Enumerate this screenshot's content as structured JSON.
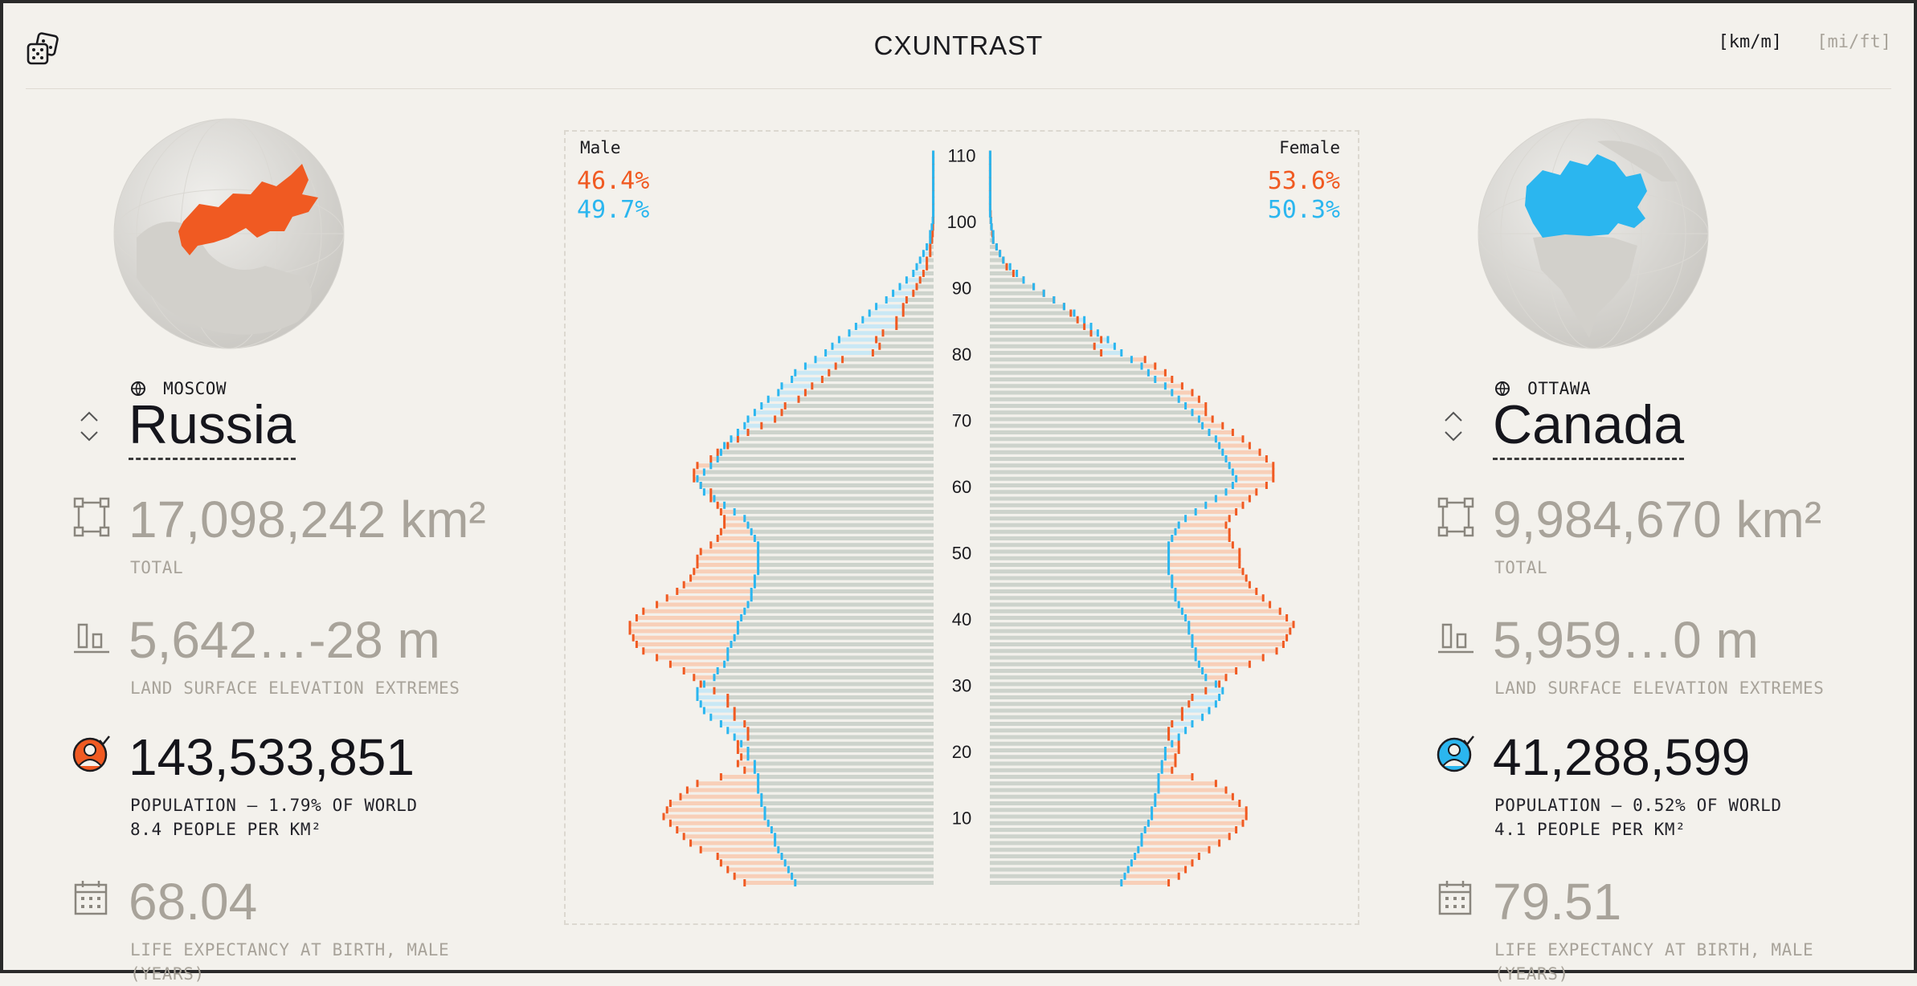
{
  "header": {
    "logo": "CXUNTRAST",
    "units": [
      {
        "label": "[km/m]",
        "active": true
      },
      {
        "label": "[mi/ft]",
        "active": false
      }
    ],
    "dice_icon": "dice-icon"
  },
  "colors": {
    "left_accent": "#f05a22",
    "right_accent": "#2bb6ef",
    "muted_text": "#a8a39a",
    "bar_fill": "#cdd3cc",
    "left_fill": "#f8cfb8",
    "right_fill": "#c9e8f5"
  },
  "left": {
    "capital": "MOSCOW",
    "name": "Russia",
    "area": {
      "value": "17,098,242 km²",
      "label": "TOTAL"
    },
    "elevation": {
      "value": "5,642…-28 m",
      "label": "LAND SURFACE ELEVATION EXTREMES"
    },
    "population": {
      "value": "143,533,851",
      "label_line1": "POPULATION – 1.79% OF WORLD",
      "label_line2": "8.4 PEOPLE PER KM²"
    },
    "life": {
      "value": "68.04",
      "label_line1": "LIFE EXPECTANCY AT BIRTH, MALE",
      "label_line2": "(YEARS)"
    }
  },
  "right": {
    "capital": "OTTAWA",
    "name": "Canada",
    "area": {
      "value": "9,984,670 km²",
      "label": "TOTAL"
    },
    "elevation": {
      "value": "5,959…0 m",
      "label": "LAND SURFACE ELEVATION EXTREMES"
    },
    "population": {
      "value": "41,288,599",
      "label_line1": "POPULATION – 0.52% OF WORLD",
      "label_line2": "4.1 PEOPLE PER KM²"
    },
    "life": {
      "value": "79.51",
      "label_line1": "LIFE EXPECTANCY AT BIRTH, MALE",
      "label_line2": "(YEARS)"
    }
  },
  "pyramid": {
    "male_label": "Male",
    "female_label": "Female",
    "male_left_pct": "46.4%",
    "male_right_pct": "49.7%",
    "female_left_pct": "53.6%",
    "female_right_pct": "50.3%"
  },
  "chart_data": {
    "type": "bar",
    "ages": [
      0,
      1,
      2,
      3,
      4,
      5,
      6,
      7,
      8,
      9,
      10,
      11,
      12,
      13,
      14,
      15,
      16,
      17,
      18,
      19,
      20,
      21,
      22,
      23,
      24,
      25,
      26,
      27,
      28,
      29,
      30,
      31,
      32,
      33,
      34,
      35,
      36,
      37,
      38,
      39,
      40,
      41,
      42,
      43,
      44,
      45,
      46,
      47,
      48,
      49,
      50,
      51,
      52,
      53,
      54,
      55,
      56,
      57,
      58,
      59,
      60,
      61,
      62,
      63,
      64,
      65,
      66,
      67,
      68,
      69,
      70,
      71,
      72,
      73,
      74,
      75,
      76,
      77,
      78,
      79,
      80,
      81,
      82,
      83,
      84,
      85,
      86,
      87,
      88,
      89,
      90,
      91,
      92,
      93,
      94,
      95,
      96,
      97,
      98,
      99,
      100,
      101,
      102,
      103,
      104,
      105,
      106,
      107,
      108,
      109,
      110
    ],
    "y_ticks": [
      10,
      20,
      30,
      40,
      50,
      60,
      70,
      80,
      90,
      100,
      110
    ],
    "series": [
      {
        "name": "Male",
        "side": "left",
        "country": "Russia",
        "values": [
          0.56,
          0.59,
          0.61,
          0.63,
          0.64,
          0.69,
          0.72,
          0.74,
          0.76,
          0.78,
          0.8,
          0.79,
          0.78,
          0.75,
          0.73,
          0.7,
          0.63,
          0.56,
          0.58,
          0.57,
          0.58,
          0.58,
          0.55,
          0.55,
          0.56,
          0.59,
          0.59,
          0.61,
          0.61,
          0.65,
          0.69,
          0.71,
          0.74,
          0.78,
          0.82,
          0.86,
          0.88,
          0.89,
          0.9,
          0.9,
          0.88,
          0.86,
          0.82,
          0.79,
          0.76,
          0.74,
          0.72,
          0.71,
          0.7,
          0.7,
          0.69,
          0.66,
          0.64,
          0.63,
          0.62,
          0.62,
          0.63,
          0.64,
          0.66,
          0.66,
          0.69,
          0.71,
          0.71,
          0.7,
          0.66,
          0.64,
          0.61,
          0.58,
          0.55,
          0.51,
          0.47,
          0.45,
          0.44,
          0.4,
          0.38,
          0.36,
          0.33,
          0.31,
          0.29,
          0.27,
          0.18,
          0.16,
          0.17,
          0.15,
          0.11,
          0.11,
          0.09,
          0.09,
          0.08,
          0.06,
          0.05,
          0.04,
          0.03,
          0.02,
          0.02,
          0.01,
          0.01,
          0.005,
          0.003,
          0.002,
          0.001,
          0.001,
          0.001,
          0.001,
          0.001,
          0.001,
          0.001,
          0.001,
          0.001,
          0.001,
          0.001
        ]
      },
      {
        "name": "Male",
        "side": "left",
        "country": "Canada",
        "values": [
          0.41,
          0.42,
          0.43,
          0.44,
          0.45,
          0.46,
          0.47,
          0.47,
          0.48,
          0.49,
          0.5,
          0.5,
          0.51,
          0.51,
          0.52,
          0.52,
          0.52,
          0.53,
          0.53,
          0.55,
          0.55,
          0.57,
          0.59,
          0.61,
          0.63,
          0.66,
          0.68,
          0.69,
          0.7,
          0.7,
          0.68,
          0.65,
          0.64,
          0.62,
          0.61,
          0.61,
          0.6,
          0.59,
          0.58,
          0.58,
          0.57,
          0.56,
          0.55,
          0.54,
          0.54,
          0.53,
          0.53,
          0.52,
          0.52,
          0.52,
          0.52,
          0.52,
          0.53,
          0.54,
          0.55,
          0.56,
          0.59,
          0.62,
          0.65,
          0.68,
          0.69,
          0.7,
          0.68,
          0.66,
          0.64,
          0.63,
          0.62,
          0.6,
          0.58,
          0.56,
          0.55,
          0.53,
          0.51,
          0.49,
          0.46,
          0.45,
          0.42,
          0.41,
          0.38,
          0.35,
          0.32,
          0.3,
          0.28,
          0.25,
          0.23,
          0.21,
          0.19,
          0.17,
          0.14,
          0.12,
          0.1,
          0.08,
          0.06,
          0.05,
          0.04,
          0.03,
          0.02,
          0.01,
          0.01,
          0.005,
          0.002,
          0.001,
          0.001,
          0.001,
          0.001,
          0.001,
          0.001,
          0.001,
          0.001,
          0.001,
          0.001
        ]
      },
      {
        "name": "Female",
        "side": "right",
        "country": "Russia",
        "values": [
          0.53,
          0.56,
          0.58,
          0.6,
          0.62,
          0.65,
          0.68,
          0.71,
          0.73,
          0.75,
          0.76,
          0.76,
          0.74,
          0.72,
          0.7,
          0.67,
          0.6,
          0.54,
          0.55,
          0.55,
          0.56,
          0.56,
          0.53,
          0.53,
          0.54,
          0.57,
          0.57,
          0.59,
          0.6,
          0.64,
          0.68,
          0.7,
          0.73,
          0.77,
          0.81,
          0.85,
          0.87,
          0.88,
          0.89,
          0.9,
          0.88,
          0.86,
          0.83,
          0.81,
          0.79,
          0.77,
          0.76,
          0.75,
          0.74,
          0.74,
          0.74,
          0.72,
          0.71,
          0.71,
          0.7,
          0.71,
          0.73,
          0.75,
          0.77,
          0.79,
          0.82,
          0.84,
          0.84,
          0.84,
          0.82,
          0.8,
          0.77,
          0.75,
          0.72,
          0.69,
          0.66,
          0.64,
          0.64,
          0.62,
          0.6,
          0.57,
          0.54,
          0.52,
          0.49,
          0.46,
          0.33,
          0.31,
          0.33,
          0.3,
          0.28,
          0.26,
          0.24,
          0.22,
          0.19,
          0.16,
          0.13,
          0.1,
          0.07,
          0.05,
          0.04,
          0.03,
          0.02,
          0.01,
          0.008,
          0.005,
          0.003,
          0.002,
          0.001,
          0.001,
          0.001,
          0.001,
          0.001,
          0.001,
          0.001,
          0.001,
          0.001
        ]
      },
      {
        "name": "Female",
        "side": "right",
        "country": "Canada",
        "values": [
          0.39,
          0.4,
          0.41,
          0.42,
          0.43,
          0.44,
          0.45,
          0.45,
          0.46,
          0.47,
          0.48,
          0.48,
          0.49,
          0.49,
          0.5,
          0.5,
          0.5,
          0.51,
          0.51,
          0.52,
          0.52,
          0.54,
          0.56,
          0.58,
          0.6,
          0.63,
          0.65,
          0.67,
          0.68,
          0.69,
          0.67,
          0.64,
          0.63,
          0.62,
          0.61,
          0.61,
          0.6,
          0.6,
          0.59,
          0.59,
          0.58,
          0.57,
          0.56,
          0.55,
          0.55,
          0.54,
          0.54,
          0.53,
          0.53,
          0.53,
          0.53,
          0.53,
          0.54,
          0.55,
          0.56,
          0.58,
          0.61,
          0.64,
          0.67,
          0.7,
          0.72,
          0.73,
          0.72,
          0.71,
          0.7,
          0.69,
          0.68,
          0.67,
          0.65,
          0.63,
          0.62,
          0.6,
          0.58,
          0.56,
          0.54,
          0.52,
          0.49,
          0.47,
          0.45,
          0.42,
          0.39,
          0.37,
          0.35,
          0.32,
          0.3,
          0.28,
          0.25,
          0.22,
          0.19,
          0.16,
          0.13,
          0.1,
          0.08,
          0.06,
          0.04,
          0.03,
          0.02,
          0.01,
          0.01,
          0.005,
          0.003,
          0.001,
          0.001,
          0.001,
          0.001,
          0.001,
          0.001,
          0.001,
          0.001,
          0.001,
          0.001
        ]
      }
    ]
  }
}
